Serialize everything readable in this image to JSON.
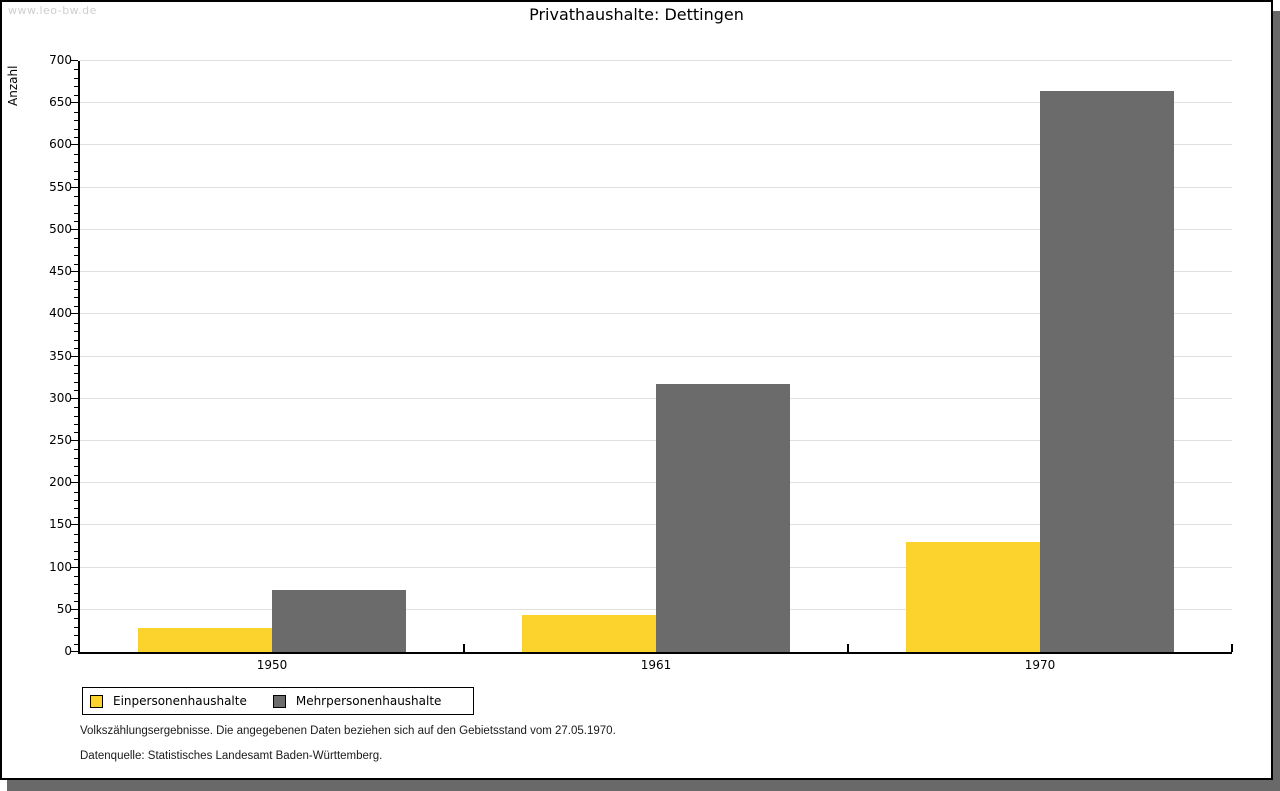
{
  "watermark": "www.leo-bw.de",
  "title": "Privathaushalte: Dettingen",
  "chart_data": {
    "type": "bar",
    "title": "Privathaushalte: Dettingen",
    "categories": [
      "1950",
      "1961",
      "1970"
    ],
    "series": [
      {
        "name": "Einpersonenhaushalte",
        "color": "#FCD32D",
        "values": [
          29,
          44,
          130
        ]
      },
      {
        "name": "Mehrpersonenhaushalte",
        "color": "#6B6B6B",
        "values": [
          73,
          317,
          665
        ]
      }
    ],
    "xlabel": "",
    "ylabel": "Anzahl",
    "ylim": [
      0,
      700
    ],
    "ytick_step": 50,
    "minor_tick_step": 10,
    "grid": true,
    "grid_color": "#e0e0e0",
    "legend_position": "bottom-left"
  },
  "footer": {
    "line1": "Volkszählungsergebnisse. Die angegebenen Daten beziehen sich auf den Gebietsstand vom 27.05.1970.",
    "line2": "Datenquelle: Statistisches Landesamt Baden-Württemberg."
  }
}
